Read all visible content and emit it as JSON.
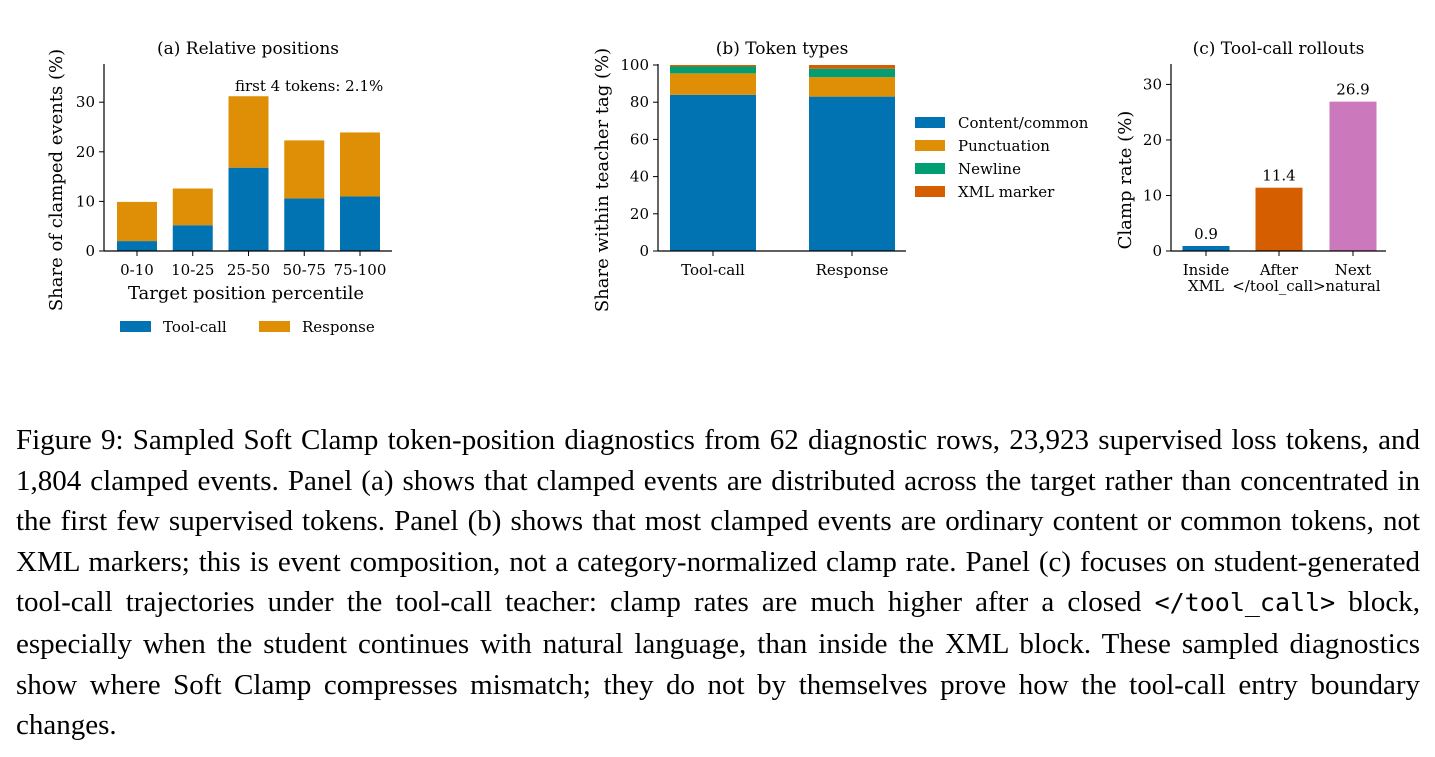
{
  "colors": {
    "blue": "#0173b2",
    "orange": "#de8f05",
    "green": "#029e73",
    "vermillion": "#d55e00",
    "pink": "#cc78bc"
  },
  "chart_data": [
    {
      "panel": "a",
      "type": "bar",
      "stacked": true,
      "title": "(a) Relative positions",
      "xlabel": "Target position percentile",
      "ylabel": "Share of clamped events (%)",
      "categories": [
        "0-10",
        "10-25",
        "25-50",
        "50-75",
        "75-100"
      ],
      "series": [
        {
          "name": "Tool-call",
          "color": "#0173b2",
          "values": [
            2.0,
            5.2,
            16.8,
            10.6,
            11.0
          ]
        },
        {
          "name": "Response",
          "color": "#de8f05",
          "values": [
            7.9,
            7.4,
            14.4,
            11.7,
            12.9
          ]
        }
      ],
      "ylim": [
        0,
        37.5
      ],
      "yticks": [
        0,
        10,
        20,
        30
      ],
      "annotation": "first 4 tokens: 2.1%",
      "legend_position": "bottom",
      "grid": false
    },
    {
      "panel": "b",
      "type": "bar",
      "stacked": true,
      "title": "(b) Token types",
      "xlabel": "",
      "ylabel": "Share within teacher tag (%)",
      "categories": [
        "Tool-call",
        "Response"
      ],
      "series": [
        {
          "name": "Content/common",
          "color": "#0173b2",
          "values": [
            84.0,
            83.0
          ]
        },
        {
          "name": "Punctuation",
          "color": "#de8f05",
          "values": [
            11.5,
            10.5
          ]
        },
        {
          "name": "Newline",
          "color": "#029e73",
          "values": [
            3.7,
            4.5
          ]
        },
        {
          "name": "XML marker",
          "color": "#d55e00",
          "values": [
            0.8,
            2.0
          ]
        }
      ],
      "ylim": [
        0,
        100
      ],
      "yticks": [
        0,
        20,
        40,
        60,
        80,
        100
      ],
      "legend_position": "right",
      "grid": false
    },
    {
      "panel": "c",
      "type": "bar",
      "stacked": false,
      "title": "(c) Tool-call rollouts",
      "xlabel": "",
      "ylabel": "Clamp rate (%)",
      "categories": [
        [
          "Inside",
          "XML"
        ],
        [
          "After",
          "</tool_call>"
        ],
        [
          "Next",
          "natural"
        ]
      ],
      "values": [
        0.9,
        11.4,
        26.9
      ],
      "value_labels": [
        "0.9",
        "11.4",
        "26.9"
      ],
      "bar_colors": [
        "#0173b2",
        "#d55e00",
        "#cc78bc"
      ],
      "ylim": [
        0,
        33.5
      ],
      "yticks": [
        0,
        10,
        20,
        30
      ],
      "grid": false
    }
  ],
  "caption": {
    "part1": "Figure 9: Sampled Soft Clamp token-position diagnostics from 62 diagnostic rows, 23,923 supervised loss tokens, and 1,804 clamped events. Panel (a) shows that clamped events are distributed across the target rather than concentrated in the first few supervised tokens. Panel (b) shows that most clamped events are ordinary content or common tokens, not XML markers; this is event composition, not a category-normalized clamp rate. Panel (c) focuses on student-generated tool-call trajectories under the tool-call teacher: clamp rates are much higher after a closed ",
    "code": "</tool_call>",
    "part2": " block, especially when the student continues with natural language, than inside the XML block. These sampled diagnostics show where Soft Clamp compresses mismatch; they do not by themselves prove how the tool-call entry boundary changes."
  }
}
